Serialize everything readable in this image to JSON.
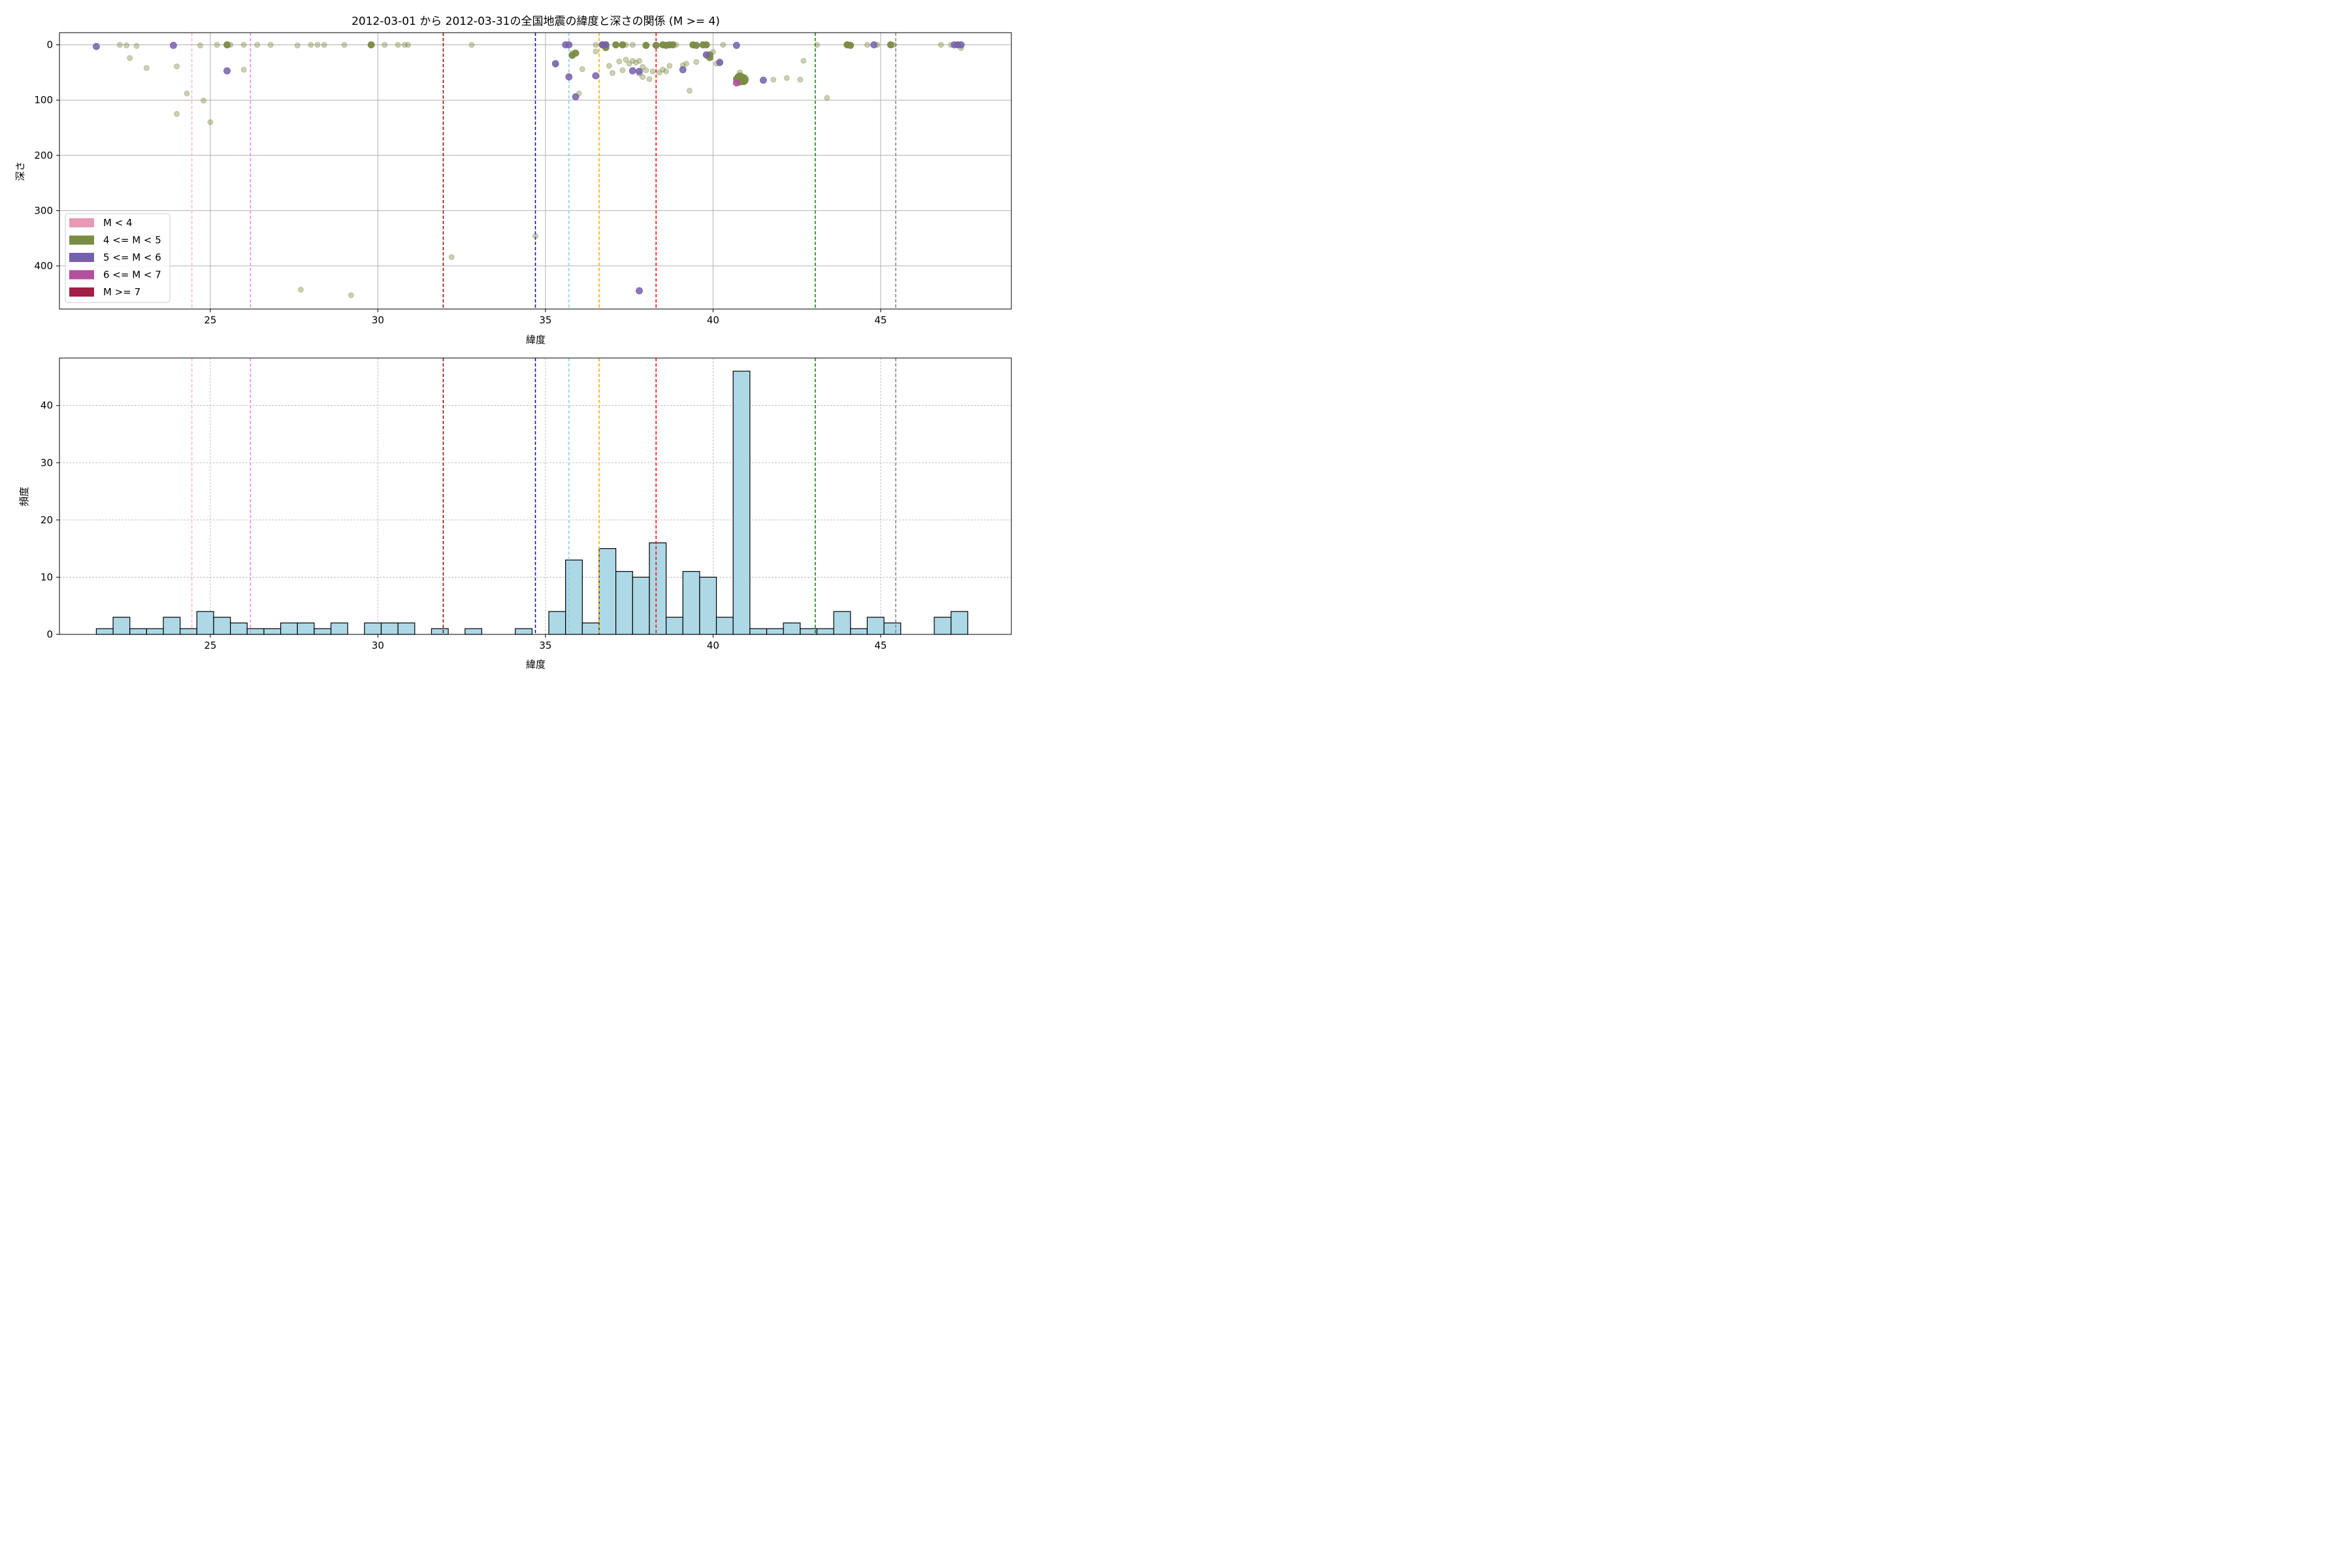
{
  "chart_data": [
    {
      "type": "scatter",
      "title": "2012-03-01 から 2012-03-31の全国地震の緯度と深さの関係 (M >= 4)",
      "xlabel": "緯度",
      "ylabel": "深さ",
      "xlim": [
        20.5,
        48.9
      ],
      "ylim": [
        478,
        -22
      ],
      "y_inverted": true,
      "xticks": [
        25,
        30,
        35,
        40,
        45
      ],
      "yticks": [
        0,
        100,
        200,
        300,
        400
      ],
      "grid": true,
      "legend_placement": "lower-left",
      "legend": [
        {
          "label": "M < 4",
          "color": "#e89ab4"
        },
        {
          "label": "4 <= M < 5",
          "color": "#7b8c44"
        },
        {
          "label": "5 <= M < 6",
          "color": "#7560ab"
        },
        {
          "label": "6 <= M < 7",
          "color": "#b54f9d"
        },
        {
          "label": "M >= 7",
          "color": "#a11f45"
        }
      ],
      "reference_lines": [
        {
          "x": 24.45,
          "color": "#ffb6c1"
        },
        {
          "x": 26.2,
          "color": "#ee82ee"
        },
        {
          "x": 31.95,
          "color": "#8b0000"
        },
        {
          "x": 34.7,
          "color": "#0000cd"
        },
        {
          "x": 35.7,
          "color": "#87ceeb"
        },
        {
          "x": 36.6,
          "color": "#ffa500"
        },
        {
          "x": 38.3,
          "color": "#ff0000"
        },
        {
          "x": 43.05,
          "color": "#008000"
        },
        {
          "x": 45.45,
          "color": "#808080"
        }
      ],
      "series": [
        {
          "class": "4 <= M < 5 (faded)",
          "color": "#7b8c44",
          "opacity": 0.4,
          "r": 4,
          "points": [
            [
              22.3,
              0
            ],
            [
              22.5,
              1
            ],
            [
              22.8,
              2
            ],
            [
              22.6,
              24
            ],
            [
              23.1,
              42
            ],
            [
              24.0,
              39
            ],
            [
              24.3,
              88
            ],
            [
              24.0,
              125
            ],
            [
              24.7,
              1
            ],
            [
              25.2,
              0
            ],
            [
              24.8,
              101
            ],
            [
              25.0,
              140
            ],
            [
              25.6,
              0
            ],
            [
              26.0,
              45
            ],
            [
              26.0,
              0
            ],
            [
              26.4,
              0
            ],
            [
              26.8,
              0
            ],
            [
              27.6,
              1
            ],
            [
              27.7,
              443
            ],
            [
              28.0,
              0
            ],
            [
              28.2,
              0
            ],
            [
              28.4,
              0
            ],
            [
              29.0,
              0
            ],
            [
              29.2,
              453
            ],
            [
              29.8,
              0
            ],
            [
              29.8,
              1
            ],
            [
              30.2,
              0
            ],
            [
              30.6,
              0
            ],
            [
              30.8,
              0
            ],
            [
              30.9,
              0
            ],
            [
              32.2,
              384
            ],
            [
              32.8,
              0
            ],
            [
              34.7,
              346
            ],
            [
              35.3,
              36
            ],
            [
              35.8,
              15
            ],
            [
              36.0,
              88
            ],
            [
              36.1,
              44
            ],
            [
              36.5,
              0
            ],
            [
              36.5,
              12
            ],
            [
              36.9,
              38
            ],
            [
              37.0,
              51
            ],
            [
              37.1,
              0
            ],
            [
              37.2,
              30
            ],
            [
              37.3,
              0
            ],
            [
              37.3,
              46
            ],
            [
              37.4,
              0
            ],
            [
              37.4,
              27
            ],
            [
              37.5,
              34
            ],
            [
              37.6,
              0
            ],
            [
              37.6,
              29
            ],
            [
              37.7,
              32
            ],
            [
              37.8,
              29
            ],
            [
              37.8,
              52
            ],
            [
              37.9,
              40
            ],
            [
              37.9,
              58
            ],
            [
              38.0,
              0
            ],
            [
              38.0,
              46
            ],
            [
              38.1,
              62
            ],
            [
              38.2,
              48
            ],
            [
              38.4,
              50
            ],
            [
              38.5,
              45
            ],
            [
              38.6,
              48
            ],
            [
              38.7,
              38
            ],
            [
              38.9,
              0
            ],
            [
              39.1,
              37
            ],
            [
              39.2,
              34
            ],
            [
              39.3,
              83
            ],
            [
              39.4,
              0
            ],
            [
              39.5,
              31
            ],
            [
              39.8,
              0
            ],
            [
              39.8,
              20
            ],
            [
              40.0,
              13
            ],
            [
              40.1,
              34
            ],
            [
              40.2,
              30
            ],
            [
              40.3,
              0
            ],
            [
              40.8,
              50
            ],
            [
              41.8,
              63
            ],
            [
              42.2,
              60
            ],
            [
              42.6,
              63
            ],
            [
              42.7,
              29
            ],
            [
              43.1,
              0
            ],
            [
              43.4,
              96
            ],
            [
              44.0,
              0
            ],
            [
              44.6,
              0
            ],
            [
              44.9,
              0
            ],
            [
              45.4,
              0
            ],
            [
              46.8,
              0
            ],
            [
              47.1,
              0
            ],
            [
              47.3,
              0
            ],
            [
              47.4,
              6
            ]
          ]
        },
        {
          "class": "4 <= M < 5",
          "color": "#7b8c44",
          "opacity": 0.95,
          "r": 5,
          "points": [
            [
              25.5,
              0
            ],
            [
              29.8,
              0
            ],
            [
              35.8,
              19
            ],
            [
              35.9,
              15
            ],
            [
              36.7,
              0
            ],
            [
              36.8,
              0
            ],
            [
              36.8,
              5
            ],
            [
              37.1,
              0
            ],
            [
              37.3,
              0
            ],
            [
              38.0,
              1
            ],
            [
              38.3,
              1
            ],
            [
              38.5,
              0
            ],
            [
              38.6,
              1
            ],
            [
              38.7,
              0
            ],
            [
              38.8,
              0
            ],
            [
              39.4,
              0
            ],
            [
              39.5,
              1
            ],
            [
              39.7,
              0
            ],
            [
              39.8,
              0
            ],
            [
              39.9,
              23
            ],
            [
              39.9,
              18
            ],
            [
              40.7,
              62
            ],
            [
              40.8,
              67
            ],
            [
              40.9,
              65
            ],
            [
              40.8,
              58
            ],
            [
              44.0,
              0
            ],
            [
              44.1,
              1
            ],
            [
              45.3,
              0
            ]
          ]
        },
        {
          "class": "4 <= M < 5 large",
          "color": "#7b8c44",
          "opacity": 0.95,
          "r": 8,
          "points": [
            [
              40.9,
              63
            ],
            [
              40.8,
              60
            ]
          ]
        },
        {
          "class": "5 <= M < 6",
          "color": "#7560ab",
          "opacity": 0.85,
          "r": 5,
          "points": [
            [
              21.6,
              3
            ],
            [
              23.9,
              1
            ],
            [
              25.5,
              47
            ],
            [
              35.3,
              34
            ],
            [
              35.6,
              0
            ],
            [
              35.7,
              0
            ],
            [
              35.7,
              58
            ],
            [
              35.9,
              94
            ],
            [
              36.5,
              56
            ],
            [
              36.7,
              0
            ],
            [
              36.8,
              0
            ],
            [
              37.6,
              47
            ],
            [
              37.8,
              48
            ],
            [
              39.1,
              45
            ],
            [
              39.8,
              18
            ],
            [
              40.2,
              32
            ],
            [
              40.7,
              1
            ],
            [
              41.5,
              64
            ],
            [
              44.8,
              0
            ],
            [
              47.2,
              0
            ],
            [
              47.3,
              0
            ],
            [
              47.4,
              0
            ]
          ]
        },
        {
          "class": "5 <= M < 6 deep",
          "color": "#7560ab",
          "opacity": 0.85,
          "r": 5,
          "points": [
            [
              37.8,
              445
            ]
          ]
        },
        {
          "class": "6 <= M < 7",
          "color": "#b54f9d",
          "opacity": 0.9,
          "r": 5,
          "points": [
            [
              40.7,
              69
            ]
          ]
        }
      ]
    },
    {
      "type": "bar",
      "title": "",
      "xlabel": "緯度",
      "ylabel": "頻度",
      "xlim": [
        20.5,
        48.9
      ],
      "ylim": [
        0,
        48.3
      ],
      "xticks": [
        25,
        30,
        35,
        40,
        45
      ],
      "yticks": [
        0,
        10,
        20,
        30,
        40
      ],
      "grid": true,
      "bar_color": "#add8e6",
      "bin_edges_start": 21.6,
      "bin_width": 0.5,
      "counts": [
        1,
        3,
        1,
        1,
        3,
        1,
        4,
        3,
        2,
        1,
        1,
        2,
        2,
        1,
        2,
        0,
        2,
        2,
        2,
        0,
        1,
        0,
        1,
        0,
        0,
        1,
        0,
        4,
        13,
        2,
        15,
        11,
        10,
        16,
        3,
        11,
        10,
        3,
        46,
        1,
        1,
        2,
        1,
        1,
        4,
        1,
        3,
        2,
        0,
        0,
        3,
        4
      ],
      "reference_lines": [
        {
          "x": 24.45,
          "color": "#ffb6c1"
        },
        {
          "x": 26.2,
          "color": "#ee82ee"
        },
        {
          "x": 31.95,
          "color": "#8b0000"
        },
        {
          "x": 34.7,
          "color": "#0000cd"
        },
        {
          "x": 35.7,
          "color": "#87ceeb"
        },
        {
          "x": 36.6,
          "color": "#ffa500"
        },
        {
          "x": 38.3,
          "color": "#ff0000"
        },
        {
          "x": 43.05,
          "color": "#008000"
        },
        {
          "x": 45.45,
          "color": "#808080"
        }
      ]
    }
  ]
}
